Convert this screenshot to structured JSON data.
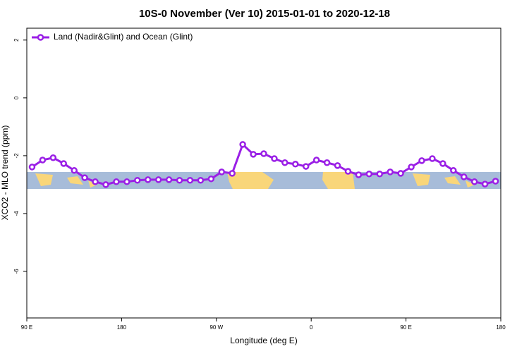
{
  "chart_data": {
    "type": "line",
    "title": "10S-0 November (Ver 10)   2015-01-01 to 2020-12-18",
    "xlabel": "Longitude (deg E)",
    "ylabel": "XCO2 - MLO trend (ppm)",
    "x": [
      95,
      105,
      115,
      125,
      135,
      145,
      155,
      165,
      175,
      185,
      195,
      205,
      215,
      225,
      235,
      245,
      255,
      265,
      275,
      285,
      295,
      305,
      315,
      325,
      335,
      345,
      355,
      365,
      375,
      385,
      395,
      405,
      415,
      425,
      435,
      445,
      455,
      465,
      475,
      485,
      495,
      505,
      515,
      525,
      535
    ],
    "series": [
      {
        "name": "Land (Nadir&Glint) and Ocean (Glint)",
        "color": "#9a1fe6",
        "values": [
          -2.39,
          -2.15,
          -2.07,
          -2.27,
          -2.51,
          -2.76,
          -2.9,
          -3.0,
          -2.9,
          -2.9,
          -2.85,
          -2.83,
          -2.83,
          -2.83,
          -2.85,
          -2.85,
          -2.85,
          -2.8,
          -2.56,
          -2.61,
          -1.61,
          -1.95,
          -1.93,
          -2.1,
          -2.24,
          -2.29,
          -2.37,
          -2.15,
          -2.24,
          -2.34,
          -2.54,
          -2.66,
          -2.63,
          -2.63,
          -2.56,
          -2.61,
          -2.39,
          -2.17,
          -2.1,
          -2.27,
          -2.51,
          -2.73,
          -2.9,
          -2.98,
          -2.88
        ]
      }
    ],
    "xlim": [
      90,
      540
    ],
    "xticks": [
      {
        "value": 90,
        "label": "90 E"
      },
      180,
      {
        "value": 270,
        "label": "90 W"
      },
      {
        "value": 360,
        "label": "0"
      },
      {
        "value": 450,
        "label": "90 E"
      },
      {
        "value": 540,
        "label": "180"
      }
    ],
    "ylim": [
      -7.61,
      2.41
    ],
    "yticks": [
      -6,
      -4,
      -2,
      0,
      2
    ],
    "legend": "upper-left"
  }
}
